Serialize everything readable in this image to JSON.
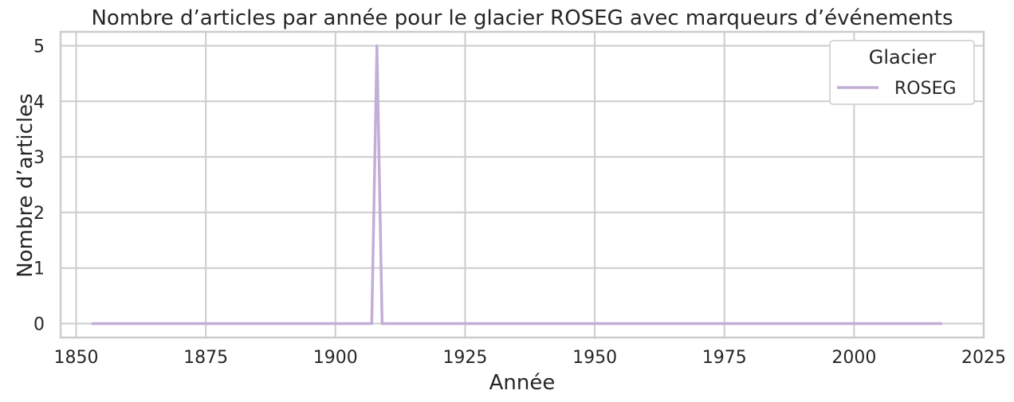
{
  "chart_data": {
    "type": "line",
    "title": "Nombre d’articles par année pour le glacier ROSEG avec marqueurs d’événements",
    "xlabel": "Année",
    "ylabel": "Nombre d’articles",
    "xlim": [
      1847,
      2025
    ],
    "ylim": [
      -0.25,
      5.25
    ],
    "xticks": [
      1850,
      1875,
      1900,
      1925,
      1950,
      1975,
      2000,
      2025
    ],
    "yticks": [
      0,
      1,
      2,
      3,
      4,
      5
    ],
    "grid": true,
    "legend": {
      "title": "Glacier",
      "position": "top-right"
    },
    "series": [
      {
        "name": "ROSEG",
        "color": "#c2aed6",
        "x": [
          1853,
          1907,
          1908,
          1909,
          2017
        ],
        "values": [
          0,
          0,
          5,
          0,
          0
        ]
      }
    ]
  }
}
